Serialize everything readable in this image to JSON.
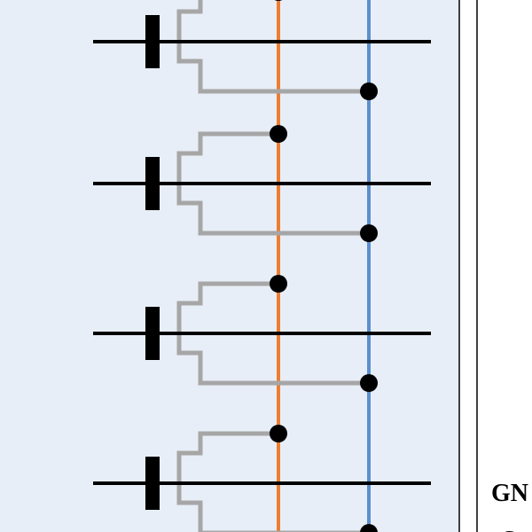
{
  "labels": {
    "gnd_partial": "GN",
    "s_partial": "S"
  },
  "colors": {
    "panel_bg": "#e8eef7",
    "word_line": "#000000",
    "transistor_wire": "#a6a6a6",
    "bit_line": "#ed7d31",
    "source_line": "#5b8fce",
    "node": "#000000",
    "border": "#000000"
  },
  "cells": [
    {
      "id": "cell-1"
    },
    {
      "id": "cell-2"
    },
    {
      "id": "cell-3"
    },
    {
      "id": "cell-4"
    }
  ]
}
